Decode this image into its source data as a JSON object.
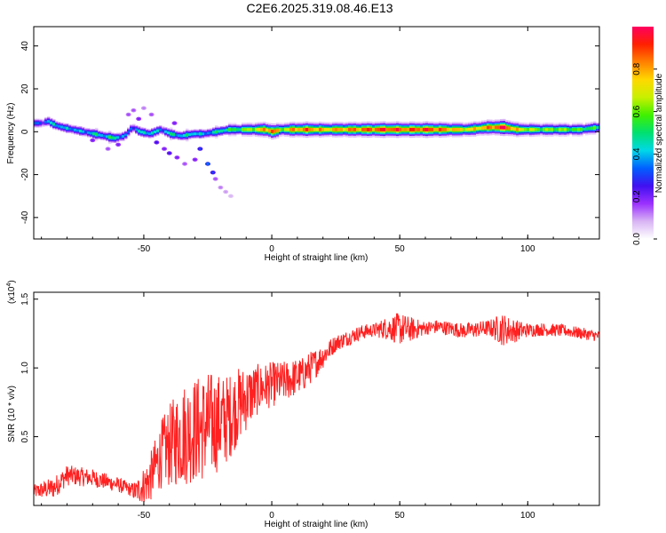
{
  "title": "C2E6.2025.319.08.46.E13",
  "chart_data": [
    {
      "type": "heatmap",
      "name": "spectrogram",
      "xlabel": "Height of straight line (km)",
      "ylabel": "Frequency (Hz)",
      "xlim": [
        -93,
        128
      ],
      "ylim": [
        -50,
        49
      ],
      "xticks": [
        -50,
        0,
        50,
        100
      ],
      "yticks": [
        40,
        20,
        0,
        -20,
        -40
      ],
      "colorbar": {
        "label": "Normalized spectral amplitude",
        "range": [
          0,
          1
        ],
        "ticks": [
          "0.0",
          "0.2",
          "0.4",
          "0.6",
          "0.8"
        ],
        "tick_values": [
          0,
          0.2,
          0.4,
          0.6,
          0.8
        ],
        "colors": [
          "#ffffff",
          "#d8b4f4",
          "#9b30ff",
          "#4010f0",
          "#0060ff",
          "#00d8e8",
          "#00e070",
          "#40f000",
          "#c8f000",
          "#ffd800",
          "#ff8000",
          "#ff2000",
          "#ff0060"
        ]
      },
      "ridges": [
        {
          "x": -90,
          "f": 4,
          "a": 0.3
        },
        {
          "x": -88,
          "f": 5,
          "a": 0.35
        },
        {
          "x": -85,
          "f": 3,
          "a": 0.45
        },
        {
          "x": -82,
          "f": 2,
          "a": 0.35
        },
        {
          "x": -78,
          "f": 1,
          "a": 0.4
        },
        {
          "x": -74,
          "f": 0,
          "a": 0.35
        },
        {
          "x": -70,
          "f": -1,
          "a": 0.45
        },
        {
          "x": -66,
          "f": -2,
          "a": 0.4
        },
        {
          "x": -62,
          "f": -3,
          "a": 0.5
        },
        {
          "x": -58,
          "f": -2,
          "a": 0.3
        },
        {
          "x": -55,
          "f": 2,
          "a": 0.35
        },
        {
          "x": -52,
          "f": 0,
          "a": 0.4
        },
        {
          "x": -48,
          "f": -1,
          "a": 0.45
        },
        {
          "x": -44,
          "f": 1,
          "a": 0.35
        },
        {
          "x": -40,
          "f": -1,
          "a": 0.45
        },
        {
          "x": -36,
          "f": -2,
          "a": 0.4
        },
        {
          "x": -31,
          "f": -1,
          "a": 0.45
        },
        {
          "x": -27,
          "f": -1,
          "a": 0.35
        },
        {
          "x": -22,
          "f": 0,
          "a": 0.45
        },
        {
          "x": -17,
          "f": 1,
          "a": 0.5
        },
        {
          "x": -13,
          "f": 1,
          "a": 0.55
        },
        {
          "x": -8,
          "f": 1,
          "a": 0.65
        },
        {
          "x": -3,
          "f": 1,
          "a": 0.8
        },
        {
          "x": 0,
          "f": 0,
          "a": 0.9
        },
        {
          "x": 3,
          "f": 1,
          "a": 0.6
        },
        {
          "x": 8,
          "f": 1,
          "a": 0.8
        },
        {
          "x": 14,
          "f": 1,
          "a": 0.85
        },
        {
          "x": 20,
          "f": 1,
          "a": 0.75
        },
        {
          "x": 28,
          "f": 1,
          "a": 0.8
        },
        {
          "x": 36,
          "f": 1,
          "a": 0.85
        },
        {
          "x": 44,
          "f": 1,
          "a": 0.9
        },
        {
          "x": 52,
          "f": 1,
          "a": 0.85
        },
        {
          "x": 60,
          "f": 1,
          "a": 0.9
        },
        {
          "x": 68,
          "f": 1,
          "a": 0.8
        },
        {
          "x": 76,
          "f": 1,
          "a": 0.7
        },
        {
          "x": 84,
          "f": 2,
          "a": 0.8
        },
        {
          "x": 90,
          "f": 2,
          "a": 0.95
        },
        {
          "x": 96,
          "f": 1,
          "a": 0.7
        },
        {
          "x": 104,
          "f": 1,
          "a": 0.6
        },
        {
          "x": 112,
          "f": 1,
          "a": 0.6
        },
        {
          "x": 120,
          "f": 1,
          "a": 0.55
        },
        {
          "x": 127,
          "f": 2,
          "a": 0.5
        }
      ],
      "scatter": [
        {
          "x": -56,
          "f": 8,
          "a": 0.15
        },
        {
          "x": -54,
          "f": 10,
          "a": 0.15
        },
        {
          "x": -52,
          "f": 6,
          "a": 0.2
        },
        {
          "x": -50,
          "f": 11,
          "a": 0.12
        },
        {
          "x": -47,
          "f": 8,
          "a": 0.15
        },
        {
          "x": -45,
          "f": -5,
          "a": 0.25
        },
        {
          "x": -42,
          "f": -8,
          "a": 0.2
        },
        {
          "x": -40,
          "f": -10,
          "a": 0.25
        },
        {
          "x": -37,
          "f": -12,
          "a": 0.2
        },
        {
          "x": -34,
          "f": -15,
          "a": 0.15
        },
        {
          "x": -30,
          "f": -13,
          "a": 0.2
        },
        {
          "x": -25,
          "f": -15,
          "a": 0.35
        },
        {
          "x": -23,
          "f": -19,
          "a": 0.3
        },
        {
          "x": -22,
          "f": -22,
          "a": 0.15
        },
        {
          "x": -20,
          "f": -26,
          "a": 0.12
        },
        {
          "x": -18,
          "f": -28,
          "a": 0.1
        },
        {
          "x": -16,
          "f": -30,
          "a": 0.08
        },
        {
          "x": -60,
          "f": -6,
          "a": 0.2
        },
        {
          "x": -64,
          "f": -8,
          "a": 0.15
        },
        {
          "x": -70,
          "f": -4,
          "a": 0.2
        },
        {
          "x": -28,
          "f": -8,
          "a": 0.3
        },
        {
          "x": -38,
          "f": 4,
          "a": 0.2
        }
      ]
    },
    {
      "type": "line",
      "name": "snr",
      "xlabel": "Height of straight line (km)",
      "ylabel": "SNR (10 * v/v)",
      "multiplier": "(x10",
      "multiplier_exp": "4",
      "multiplier_close": ")",
      "xlim": [
        -93,
        128
      ],
      "ylim": [
        0,
        1.55
      ],
      "xticks": [
        -50,
        0,
        50,
        100
      ],
      "yticks": [
        0.5,
        1.0,
        1.5
      ],
      "ytick_labels": [
        "0.5",
        "1.0",
        "1.5"
      ],
      "color": "#ff2020",
      "envelope": [
        {
          "x": -93,
          "v": 0.1
        },
        {
          "x": -85,
          "v": 0.13
        },
        {
          "x": -80,
          "v": 0.22
        },
        {
          "x": -70,
          "v": 0.2
        },
        {
          "x": -60,
          "v": 0.15
        },
        {
          "x": -53,
          "v": 0.1
        },
        {
          "x": -48,
          "v": 0.18
        },
        {
          "x": -43,
          "v": 0.38
        },
        {
          "x": -35,
          "v": 0.52
        },
        {
          "x": -25,
          "v": 0.58
        },
        {
          "x": -18,
          "v": 0.62
        },
        {
          "x": -12,
          "v": 0.75
        },
        {
          "x": -5,
          "v": 0.85
        },
        {
          "x": 0,
          "v": 0.88
        },
        {
          "x": 5,
          "v": 0.9
        },
        {
          "x": 12,
          "v": 0.95
        },
        {
          "x": 18,
          "v": 1.05
        },
        {
          "x": 25,
          "v": 1.18
        },
        {
          "x": 35,
          "v": 1.26
        },
        {
          "x": 45,
          "v": 1.29
        },
        {
          "x": 55,
          "v": 1.28
        },
        {
          "x": 65,
          "v": 1.3
        },
        {
          "x": 75,
          "v": 1.27
        },
        {
          "x": 85,
          "v": 1.29
        },
        {
          "x": 95,
          "v": 1.27
        },
        {
          "x": 105,
          "v": 1.28
        },
        {
          "x": 115,
          "v": 1.27
        },
        {
          "x": 128,
          "v": 1.23
        }
      ],
      "noise": [
        {
          "x": -93,
          "n": 0.05
        },
        {
          "x": -85,
          "n": 0.08
        },
        {
          "x": -75,
          "n": 0.07
        },
        {
          "x": -55,
          "n": 0.05
        },
        {
          "x": -45,
          "n": 0.22
        },
        {
          "x": -35,
          "n": 0.38
        },
        {
          "x": -25,
          "n": 0.4
        },
        {
          "x": -15,
          "n": 0.3
        },
        {
          "x": -5,
          "n": 0.18
        },
        {
          "x": 5,
          "n": 0.15
        },
        {
          "x": 15,
          "n": 0.12
        },
        {
          "x": 25,
          "n": 0.06
        },
        {
          "x": 40,
          "n": 0.05
        },
        {
          "x": 50,
          "n": 0.12
        },
        {
          "x": 60,
          "n": 0.05
        },
        {
          "x": 85,
          "n": 0.06
        },
        {
          "x": 90,
          "n": 0.12
        },
        {
          "x": 100,
          "n": 0.05
        },
        {
          "x": 128,
          "n": 0.04
        }
      ]
    }
  ]
}
